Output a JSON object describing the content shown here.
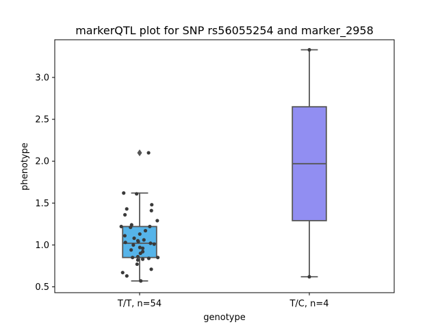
{
  "chart_data": {
    "type": "box",
    "title": "markerQTL plot for SNP rs56055254 and marker_2958",
    "xlabel": "genotype",
    "ylabel": "phenotype",
    "ylim": [
      0.43,
      3.45
    ],
    "yticks": [
      0.5,
      1.0,
      1.5,
      2.0,
      2.5,
      3.0
    ],
    "ytick_labels": [
      "0.5",
      "1.0",
      "1.5",
      "2.0",
      "2.5",
      "3.0"
    ],
    "grid": false,
    "categories": [
      "T/T, n=54",
      "T/C, n=4"
    ],
    "boxes": [
      {
        "category": "T/T, n=54",
        "color": "#56b4e9",
        "whisker_low": 0.57,
        "q1": 0.85,
        "median": 1.02,
        "q3": 1.22,
        "whisker_high": 1.62,
        "outliers": [
          2.1
        ],
        "points": [
          2.1,
          1.62,
          1.61,
          1.48,
          1.43,
          1.41,
          1.36,
          1.29,
          1.24,
          1.22,
          1.22,
          1.21,
          1.17,
          1.13,
          1.11,
          1.08,
          1.06,
          1.05,
          1.04,
          1.03,
          1.02,
          1.01,
          1.0,
          0.97,
          0.96,
          0.94,
          0.92,
          0.9,
          0.86,
          0.85,
          0.85,
          0.84,
          0.83,
          0.82,
          0.77,
          0.71,
          0.67,
          0.63,
          0.57
        ]
      },
      {
        "category": "T/C, n=4",
        "color": "#918ef2",
        "whisker_low": 0.62,
        "q1": 1.29,
        "median": 1.97,
        "q3": 2.65,
        "whisker_high": 3.33,
        "outliers": [],
        "points": [
          3.33,
          0.62
        ]
      }
    ]
  }
}
